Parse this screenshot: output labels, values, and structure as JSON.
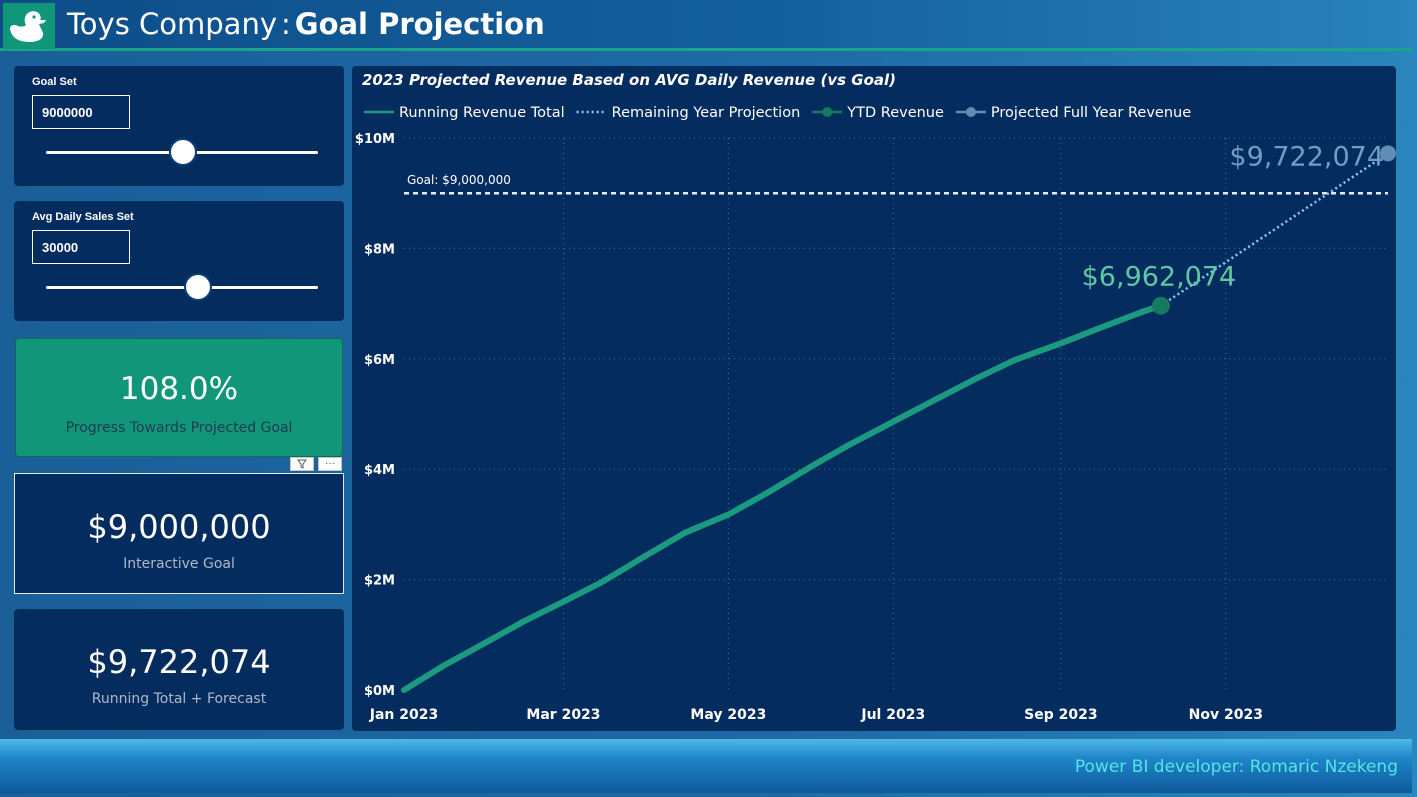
{
  "header": {
    "company": "Toys Company",
    "separator": ":",
    "page_title": "Goal Projection",
    "logo_icon": "duck-icon"
  },
  "slicers": [
    {
      "title": "Goal Set",
      "value": "9000000",
      "level": 0.5
    },
    {
      "title": "Avg Daily Sales Set",
      "value": "30000",
      "level": 0.56
    }
  ],
  "kpis": {
    "progress": {
      "value": "108.0%",
      "label": "Progress Towards Projected Goal",
      "accent": "#12967a"
    },
    "goal": {
      "value": "$9,000,000",
      "label": "Interactive Goal"
    },
    "forecast": {
      "value": "$9,722,074",
      "label": "Running Total + Forecast"
    }
  },
  "visual_tools": {
    "filter_icon": "filter-icon",
    "more_label": "···"
  },
  "chart": {
    "title": "2023 Projected Revenue Based on AVG Daily Revenue (vs Goal)",
    "legend": [
      {
        "label": "Running Revenue Total",
        "style": "line",
        "color": "#1b9a80"
      },
      {
        "label": "Remaining Year Projection",
        "style": "dotted",
        "color": "#7fd4f5"
      },
      {
        "label": "YTD Revenue",
        "style": "line-dot",
        "color": "#157a5e"
      },
      {
        "label": "Projected Full Year Revenue",
        "style": "line-dot",
        "color": "#5c8fb3"
      }
    ],
    "goal_label": "Goal: $9,000,000",
    "ytd_label": "$6,962,074",
    "projected_label": "$9,722,074"
  },
  "chart_data": {
    "type": "line",
    "title": "2023 Projected Revenue Based on AVG Daily Revenue (vs Goal)",
    "xlabel": "",
    "ylabel": "",
    "x_ticks": [
      "Jan 2023",
      "Mar 2023",
      "May 2023",
      "Jul 2023",
      "Sep 2023",
      "Nov 2023"
    ],
    "y_ticks": [
      "$0M",
      "$2M",
      "$4M",
      "$6M",
      "$8M",
      "$10M"
    ],
    "ylim": [
      0,
      10000000
    ],
    "xlim": [
      "2023-01-01",
      "2023-12-31"
    ],
    "goal": 9000000,
    "series": [
      {
        "name": "Running Revenue Total",
        "x": [
          "2023-01-01",
          "2023-01-15",
          "2023-02-01",
          "2023-02-15",
          "2023-03-01",
          "2023-03-15",
          "2023-04-01",
          "2023-04-15",
          "2023-05-01",
          "2023-05-15",
          "2023-06-01",
          "2023-06-15",
          "2023-07-01",
          "2023-07-15",
          "2023-08-01",
          "2023-08-15",
          "2023-09-01",
          "2023-09-15",
          "2023-10-01",
          "2023-10-08"
        ],
        "values": [
          0,
          420000,
          880000,
          1260000,
          1600000,
          1950000,
          2450000,
          2850000,
          3180000,
          3560000,
          4060000,
          4450000,
          4860000,
          5220000,
          5650000,
          5980000,
          6280000,
          6550000,
          6850000,
          6962074
        ]
      },
      {
        "name": "Remaining Year Projection",
        "x": [
          "2023-10-08",
          "2023-12-31"
        ],
        "values": [
          6962074,
          9722074
        ]
      },
      {
        "name": "YTD Revenue",
        "x": [
          "2023-10-08"
        ],
        "values": [
          6962074
        ]
      },
      {
        "name": "Projected Full Year Revenue",
        "x": [
          "2023-12-31"
        ],
        "values": [
          9722074
        ]
      }
    ],
    "grid": true,
    "legend_position": "top-left"
  },
  "footer": {
    "credit": "Power BI developer: Romaric Nzekeng"
  }
}
